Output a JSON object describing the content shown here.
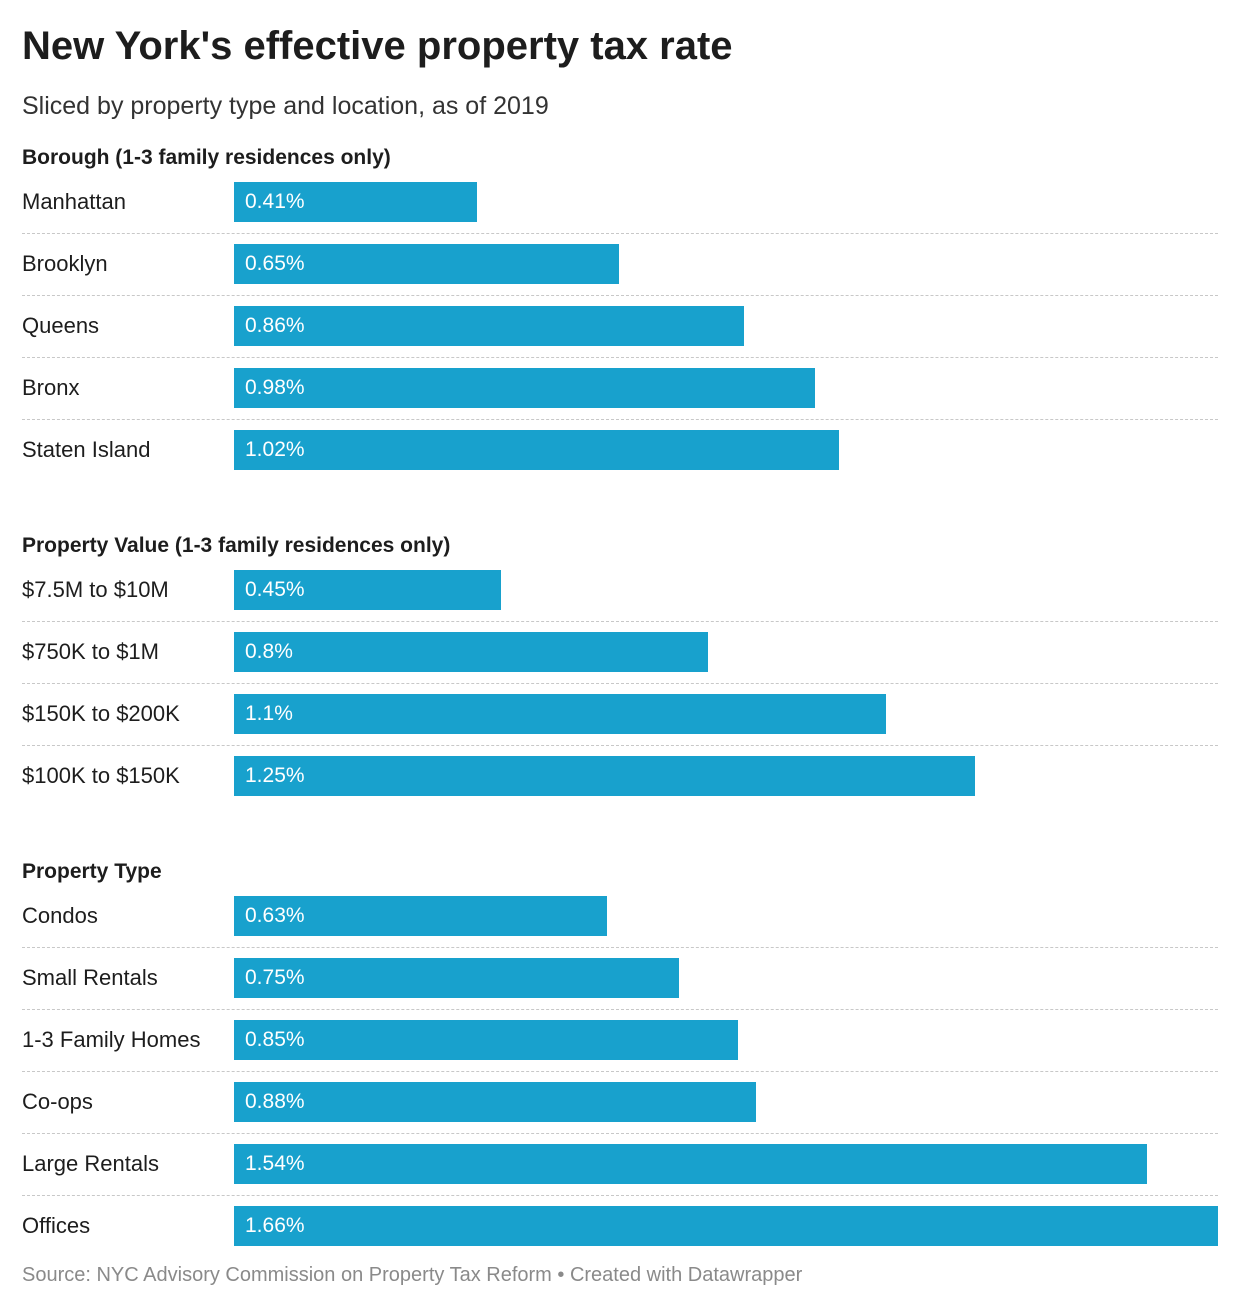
{
  "title": "New York's effective property tax rate",
  "subtitle": "Sliced by property type and location, as of 2019",
  "footer": {
    "source": "Source: NYC Advisory Commission on Property Tax Reform",
    "separator": " • ",
    "credit": "Created with Datawrapper"
  },
  "colors": {
    "bar": "#18a1cd",
    "bar_text": "#ffffff"
  },
  "chart_data": {
    "type": "bar",
    "orientation": "horizontal",
    "title": "New York's effective property tax rate",
    "subtitle": "Sliced by property type and location, as of 2019",
    "unit": "%",
    "xlim": [
      0,
      1.66
    ],
    "groups": [
      {
        "name": "Borough (1-3 family residences only)",
        "categories": [
          "Manhattan",
          "Brooklyn",
          "Queens",
          "Bronx",
          "Staten Island"
        ],
        "values": [
          0.41,
          0.65,
          0.86,
          0.98,
          1.02
        ],
        "labels": [
          "0.41%",
          "0.65%",
          "0.86%",
          "0.98%",
          "1.02%"
        ]
      },
      {
        "name": "Property Value (1-3 family residences only)",
        "categories": [
          "$7.5M to $10M",
          "$750K to $1M",
          "$150K to $200K",
          "$100K to $150K"
        ],
        "values": [
          0.45,
          0.8,
          1.1,
          1.25
        ],
        "labels": [
          "0.45%",
          "0.8%",
          "1.1%",
          "1.25%"
        ]
      },
      {
        "name": "Property Type",
        "categories": [
          "Condos",
          "Small Rentals",
          "1-3 Family Homes",
          "Co-ops",
          "Large Rentals",
          "Offices"
        ],
        "values": [
          0.63,
          0.75,
          0.85,
          0.88,
          1.54,
          1.66
        ],
        "labels": [
          "0.63%",
          "0.75%",
          "0.85%",
          "0.88%",
          "1.54%",
          "1.66%"
        ]
      }
    ]
  }
}
